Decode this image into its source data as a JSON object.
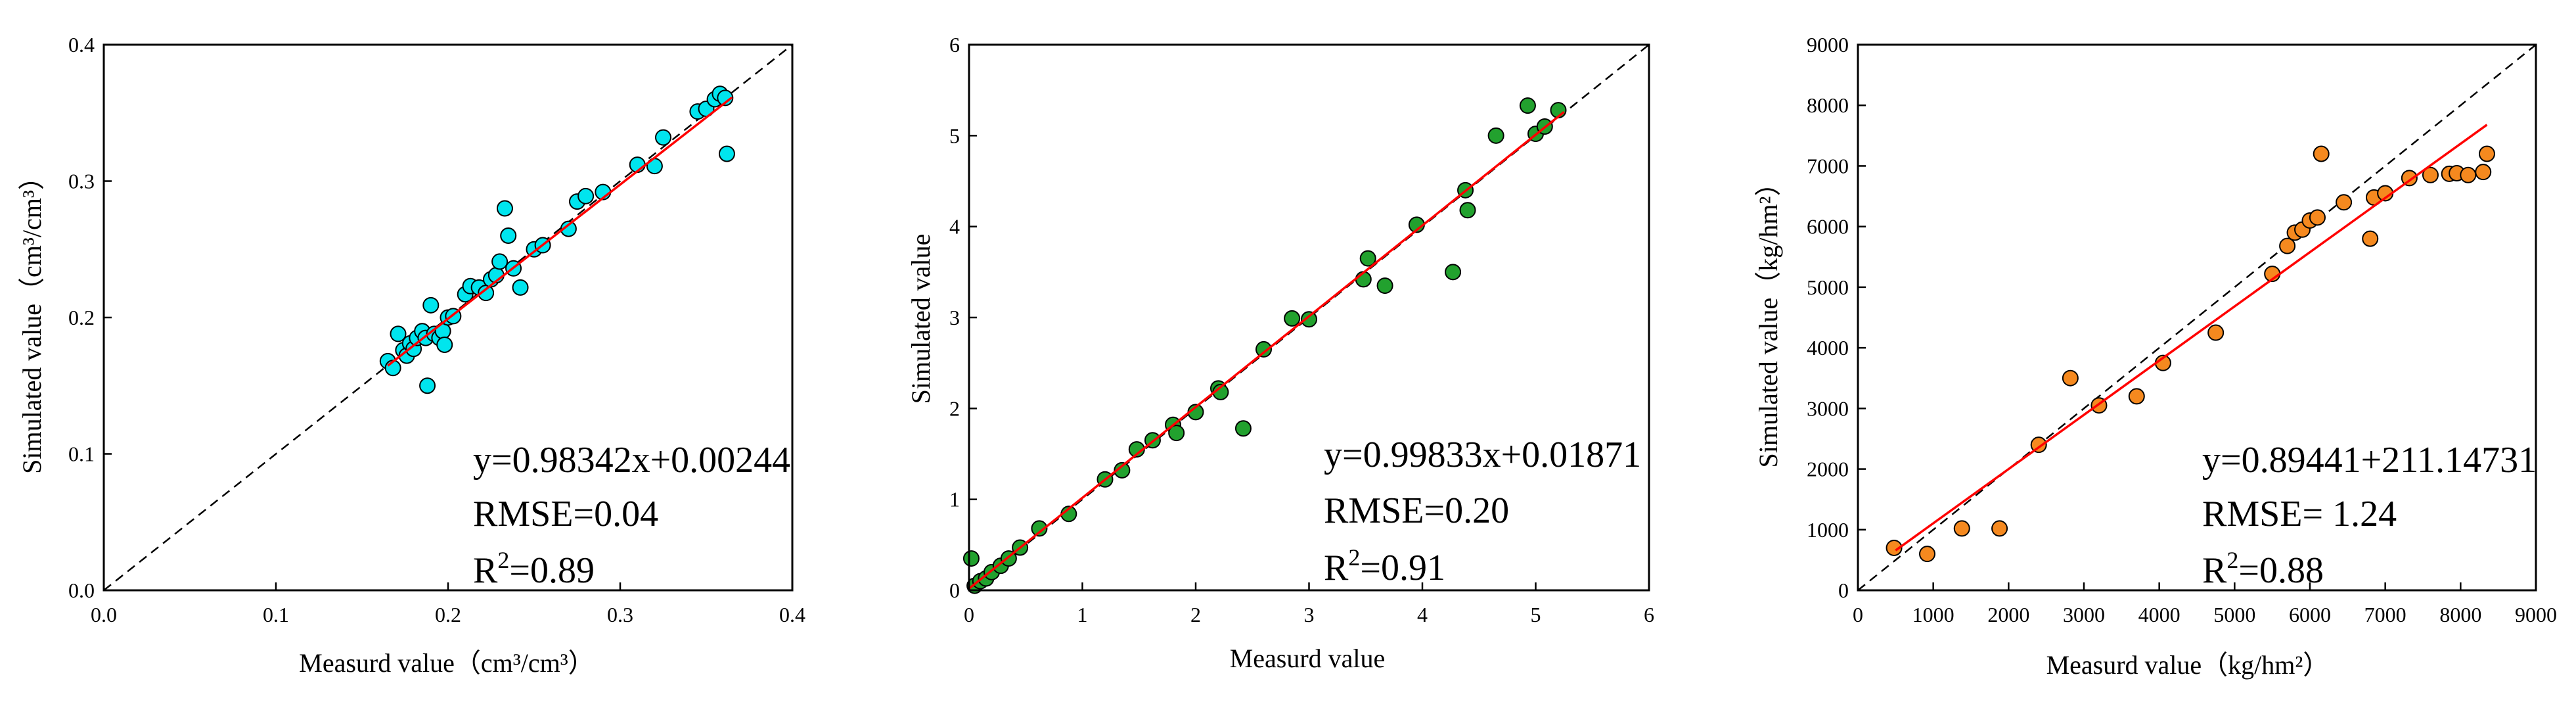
{
  "chart_data": [
    {
      "type": "scatter",
      "title": "",
      "xlabel": "Measurd value（cm³/cm³）",
      "ylabel": "Simulated value（cm³/cm³）",
      "xlim": [
        0,
        0.4
      ],
      "ylim": [
        0,
        0.4
      ],
      "xticks": [
        "0.0",
        "0.1",
        "0.2",
        "0.3",
        "0.4"
      ],
      "yticks": [
        "0.0",
        "0.1",
        "0.2",
        "0.3",
        "0.4"
      ],
      "marker_color": "#00e5ee",
      "fit_color": "#ff0000",
      "annotations": {
        "equation": "y=0.98342x+0.00244",
        "rmse": "RMSE=0.04",
        "r2_prefix": "R",
        "r2_sup": "2",
        "r2_value": "=0.89"
      },
      "fit": {
        "slope": 0.98342,
        "intercept": 0.00244,
        "x_range": [
          0.165,
          0.365
        ]
      },
      "points": [
        [
          0.165,
          0.168
        ],
        [
          0.168,
          0.163
        ],
        [
          0.171,
          0.188
        ],
        [
          0.174,
          0.176
        ],
        [
          0.176,
          0.172
        ],
        [
          0.178,
          0.181
        ],
        [
          0.18,
          0.177
        ],
        [
          0.182,
          0.185
        ],
        [
          0.185,
          0.19
        ],
        [
          0.187,
          0.185
        ],
        [
          0.188,
          0.15
        ],
        [
          0.19,
          0.209
        ],
        [
          0.192,
          0.188
        ],
        [
          0.195,
          0.185
        ],
        [
          0.197,
          0.19
        ],
        [
          0.198,
          0.18
        ],
        [
          0.2,
          0.2
        ],
        [
          0.203,
          0.201
        ],
        [
          0.21,
          0.217
        ],
        [
          0.213,
          0.223
        ],
        [
          0.218,
          0.222
        ],
        [
          0.222,
          0.218
        ],
        [
          0.225,
          0.228
        ],
        [
          0.228,
          0.231
        ],
        [
          0.23,
          0.241
        ],
        [
          0.233,
          0.28
        ],
        [
          0.235,
          0.26
        ],
        [
          0.238,
          0.236
        ],
        [
          0.242,
          0.222
        ],
        [
          0.25,
          0.25
        ],
        [
          0.255,
          0.253
        ],
        [
          0.27,
          0.265
        ],
        [
          0.275,
          0.285
        ],
        [
          0.28,
          0.289
        ],
        [
          0.29,
          0.292
        ],
        [
          0.31,
          0.312
        ],
        [
          0.32,
          0.311
        ],
        [
          0.325,
          0.332
        ],
        [
          0.345,
          0.351
        ],
        [
          0.35,
          0.353
        ],
        [
          0.355,
          0.36
        ],
        [
          0.358,
          0.364
        ],
        [
          0.361,
          0.361
        ],
        [
          0.362,
          0.32
        ]
      ]
    },
    {
      "type": "scatter",
      "title": "",
      "xlabel": "Measurd value",
      "ylabel": "Simulated value",
      "xlim": [
        0,
        6
      ],
      "ylim": [
        0,
        6
      ],
      "xticks": [
        "0",
        "1",
        "2",
        "3",
        "4",
        "5",
        "6"
      ],
      "yticks": [
        "0",
        "1",
        "2",
        "3",
        "4",
        "5",
        "6"
      ],
      "marker_color": "#22a12e",
      "fit_color": "#ff0000",
      "annotations": {
        "equation": "y=0.99833x+0.01871",
        "rmse": "RMSE=0.20",
        "r2_prefix": "R",
        "r2_sup": "2",
        "r2_value": "=0.91"
      },
      "fit": {
        "slope": 0.99833,
        "intercept": 0.01871,
        "x_range": [
          0,
          5.25
        ]
      },
      "points": [
        [
          0.02,
          0.35
        ],
        [
          0.05,
          0.05
        ],
        [
          0.1,
          0.1
        ],
        [
          0.15,
          0.13
        ],
        [
          0.2,
          0.2
        ],
        [
          0.28,
          0.27
        ],
        [
          0.35,
          0.35
        ],
        [
          0.45,
          0.47
        ],
        [
          0.62,
          0.68
        ],
        [
          0.88,
          0.84
        ],
        [
          1.2,
          1.22
        ],
        [
          1.35,
          1.32
        ],
        [
          1.48,
          1.55
        ],
        [
          1.62,
          1.65
        ],
        [
          1.8,
          1.82
        ],
        [
          1.83,
          1.73
        ],
        [
          2.0,
          1.96
        ],
        [
          2.2,
          2.22
        ],
        [
          2.22,
          2.18
        ],
        [
          2.42,
          1.78
        ],
        [
          2.6,
          2.65
        ],
        [
          2.85,
          2.99
        ],
        [
          3.0,
          2.98
        ],
        [
          3.48,
          3.42
        ],
        [
          3.52,
          3.65
        ],
        [
          3.67,
          3.35
        ],
        [
          3.95,
          4.02
        ],
        [
          4.27,
          3.5
        ],
        [
          4.38,
          4.4
        ],
        [
          4.4,
          4.18
        ],
        [
          4.65,
          5.0
        ],
        [
          4.93,
          5.33
        ],
        [
          5.0,
          5.02
        ],
        [
          5.08,
          5.1
        ],
        [
          5.2,
          5.28
        ]
      ]
    },
    {
      "type": "scatter",
      "title": "",
      "xlabel": "Measurd value（kg/hm²）",
      "ylabel": "Simulated value（kg/hm²）",
      "xlim": [
        0,
        9000
      ],
      "ylim": [
        0,
        9000
      ],
      "xticks": [
        "0",
        "1000",
        "2000",
        "3000",
        "4000",
        "5000",
        "6000",
        "7000",
        "8000",
        "9000"
      ],
      "yticks": [
        "0",
        "1000",
        "2000",
        "3000",
        "4000",
        "5000",
        "6000",
        "7000",
        "8000",
        "9000"
      ],
      "marker_color": "#f5891f",
      "fit_color": "#ff0000",
      "annotations": {
        "equation": "y=0.89441+211.14731",
        "rmse": "RMSE= 1.24",
        "r2_prefix": "R",
        "r2_sup": "2",
        "r2_value": "=0.88"
      },
      "fit": {
        "slope": 0.89441,
        "intercept": 211.14731,
        "x_range": [
          500,
          8350
        ]
      },
      "points": [
        [
          480,
          700
        ],
        [
          920,
          600
        ],
        [
          1380,
          1020
        ],
        [
          1880,
          1020
        ],
        [
          2400,
          2400
        ],
        [
          2820,
          3500
        ],
        [
          3200,
          3050
        ],
        [
          3700,
          3200
        ],
        [
          4050,
          3750
        ],
        [
          4750,
          4250
        ],
        [
          5500,
          5220
        ],
        [
          5700,
          5680
        ],
        [
          5800,
          5900
        ],
        [
          5900,
          5950
        ],
        [
          6000,
          6100
        ],
        [
          6100,
          6150
        ],
        [
          6150,
          7200
        ],
        [
          6450,
          6400
        ],
        [
          6800,
          5800
        ],
        [
          6850,
          6480
        ],
        [
          7000,
          6550
        ],
        [
          7320,
          6800
        ],
        [
          7600,
          6850
        ],
        [
          7850,
          6870
        ],
        [
          7950,
          6880
        ],
        [
          8100,
          6850
        ],
        [
          8300,
          6900
        ],
        [
          8350,
          7200
        ]
      ]
    }
  ]
}
